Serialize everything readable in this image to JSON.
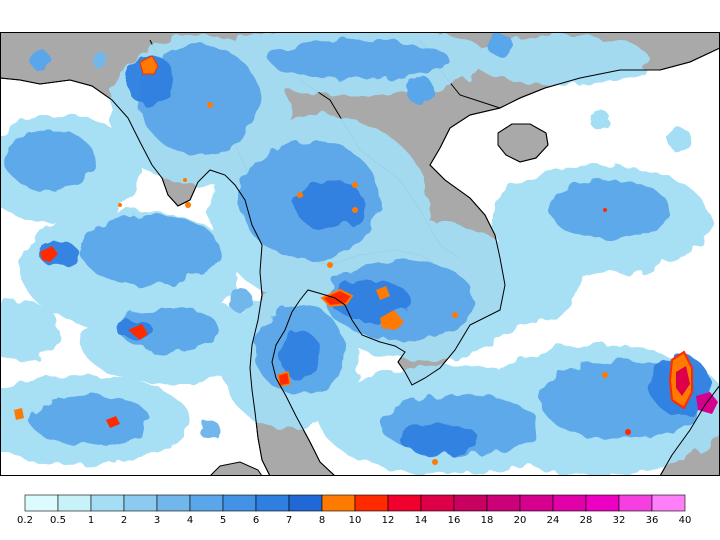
{
  "map": {
    "land_color": "#a9a9a9",
    "sea_color": "#ffffff",
    "border_color": "#000000"
  },
  "legend": {
    "labels": [
      "0.2",
      "0.5",
      "1",
      "2",
      "3",
      "4",
      "5",
      "6",
      "7",
      "8",
      "10",
      "12",
      "14",
      "16",
      "18",
      "20",
      "24",
      "28",
      "32",
      "36",
      "40"
    ],
    "colors": [
      "#dcfbff",
      "#c6f2f8",
      "#a3def4",
      "#8ccaf0",
      "#72b7ec",
      "#5aa6ea",
      "#4392e6",
      "#2f7fe0",
      "#1f68d6",
      "#ff7a00",
      "#ff2a00",
      "#f1002e",
      "#dd0048",
      "#c8005f",
      "#cc0078",
      "#d6008e",
      "#e200a8",
      "#ee00c2",
      "#f53fe0",
      "#ff7ff8"
    ]
  }
}
